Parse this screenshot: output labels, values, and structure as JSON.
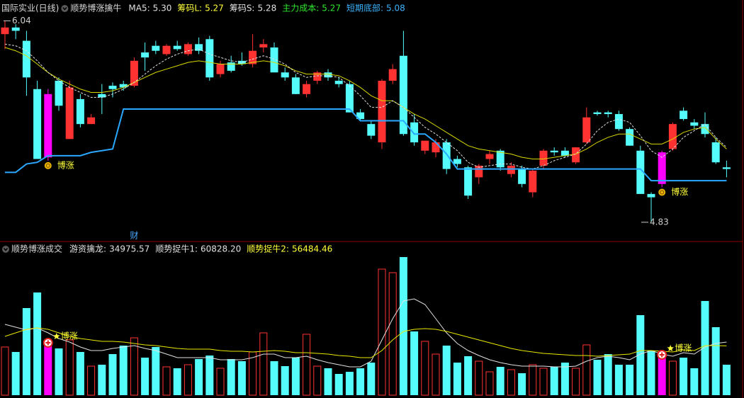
{
  "chart_data": [
    {
      "type": "candlestick",
      "title": "国际实业(日线)",
      "subtitle": "顺势博涨擒牛",
      "indicators": [
        {
          "name": "MA5:",
          "value": 5.3,
          "label": "5.30",
          "color": "#e0e0e0"
        },
        {
          "name": "筹码L:",
          "value": 5.27,
          "color": "#ffff3a"
        },
        {
          "name": "筹码S:",
          "value": 5.28,
          "color": "#e0e0e0"
        },
        {
          "name": "主力成本:",
          "value": 5.27,
          "color": "#2fe82f"
        },
        {
          "name": "短期底部:",
          "value": 5.08,
          "color": "#3cb4ff"
        }
      ],
      "open": [
        5.96,
        6.0,
        5.92,
        5.63,
        5.22,
        5.68,
        5.33,
        5.57,
        5.42,
        5.6,
        5.65,
        5.66,
        5.65,
        5.85,
        5.89,
        5.84,
        5.89,
        5.84,
        5.9,
        5.93,
        5.72,
        5.79,
        5.8,
        5.78,
        5.88,
        5.88,
        5.73,
        5.7,
        5.6,
        5.68,
        5.73,
        5.68,
        5.66,
        5.49,
        5.42,
        5.31,
        5.68,
        5.83,
        5.43,
        5.26,
        5.25,
        5.31,
        5.21,
        5.16,
        5.1,
        5.21,
        5.26,
        5.12,
        5.15,
        5.01,
        5.17,
        5.26,
        5.26,
        5.19,
        5.31,
        5.49,
        5.49,
        5.48,
        5.39,
        5.26,
        5.0,
        5.06,
        5.27,
        5.5,
        5.43,
        5.42,
        5.31,
        5.16
      ],
      "high": [
        6.04,
        6.02,
        5.98,
        5.68,
        5.63,
        5.7,
        5.68,
        5.6,
        5.48,
        5.66,
        5.67,
        5.68,
        5.82,
        5.91,
        5.92,
        5.9,
        5.92,
        5.91,
        5.94,
        5.95,
        5.8,
        5.83,
        5.85,
        5.96,
        5.93,
        5.91,
        5.76,
        5.72,
        5.68,
        5.74,
        5.75,
        5.7,
        5.68,
        5.51,
        5.44,
        5.69,
        5.78,
        5.98,
        5.48,
        5.32,
        5.33,
        5.33,
        5.23,
        5.17,
        5.18,
        5.26,
        5.27,
        5.19,
        5.17,
        5.15,
        5.27,
        5.28,
        5.28,
        5.28,
        5.52,
        5.5,
        5.5,
        5.5,
        5.4,
        5.29,
        5.01,
        5.26,
        5.43,
        5.52,
        5.45,
        5.49,
        5.34,
        5.2
      ],
      "low": [
        5.87,
        5.93,
        5.59,
        5.21,
        5.2,
        5.5,
        5.33,
        5.4,
        5.42,
        5.48,
        5.58,
        5.62,
        5.64,
        5.74,
        5.84,
        5.83,
        5.86,
        5.83,
        5.84,
        5.68,
        5.7,
        5.73,
        5.77,
        5.76,
        5.85,
        5.73,
        5.68,
        5.6,
        5.58,
        5.66,
        5.68,
        5.64,
        5.49,
        5.44,
        5.33,
        5.27,
        5.66,
        5.35,
        5.29,
        5.24,
        5.22,
        5.12,
        5.16,
        4.97,
        5.06,
        5.18,
        5.14,
        5.1,
        5.04,
        4.98,
        5.15,
        5.23,
        5.22,
        5.18,
        5.3,
        5.47,
        5.46,
        5.38,
        5.29,
        5.0,
        4.83,
        5.04,
        5.26,
        5.44,
        5.39,
        5.34,
        5.18,
        5.1
      ],
      "close": [
        6.0,
        5.98,
        5.7,
        5.21,
        5.6,
        5.53,
        5.64,
        5.42,
        5.46,
        5.58,
        5.63,
        5.64,
        5.8,
        5.82,
        5.86,
        5.89,
        5.87,
        5.9,
        5.86,
        5.7,
        5.78,
        5.74,
        5.78,
        5.86,
        5.9,
        5.73,
        5.7,
        5.6,
        5.66,
        5.73,
        5.7,
        5.66,
        5.49,
        5.45,
        5.35,
        5.68,
        5.75,
        5.36,
        5.31,
        5.32,
        5.31,
        5.15,
        5.18,
        4.99,
        5.17,
        5.24,
        5.16,
        5.17,
        5.06,
        5.14,
        5.26,
        5.25,
        5.23,
        5.28,
        5.46,
        5.48,
        5.48,
        5.39,
        5.29,
        5.0,
        4.98,
        5.25,
        5.42,
        5.45,
        5.41,
        5.36,
        5.19,
        5.15
      ],
      "series": [
        {
          "color": "#d8d800",
          "values": [
            5.88,
            5.86,
            5.83,
            5.78,
            5.73,
            5.69,
            5.66,
            5.63,
            5.61,
            5.61,
            5.62,
            5.64,
            5.67,
            5.7,
            5.73,
            5.75,
            5.77,
            5.79,
            5.8,
            5.79,
            5.78,
            5.78,
            5.78,
            5.79,
            5.8,
            5.79,
            5.77,
            5.74,
            5.72,
            5.72,
            5.72,
            5.71,
            5.68,
            5.64,
            5.59,
            5.56,
            5.56,
            5.52,
            5.48,
            5.45,
            5.41,
            5.37,
            5.33,
            5.29,
            5.27,
            5.26,
            5.25,
            5.24,
            5.22,
            5.21,
            5.21,
            5.22,
            5.23,
            5.24,
            5.27,
            5.31,
            5.34,
            5.36,
            5.36,
            5.33,
            5.3,
            5.3,
            5.33,
            5.37,
            5.39,
            5.4,
            5.33,
            5.27
          ]
        },
        {
          "color": "#e0e0e0",
          "dash": true,
          "values": [
            5.9,
            5.89,
            5.86,
            5.8,
            5.73,
            5.68,
            5.64,
            5.61,
            5.58,
            5.58,
            5.6,
            5.63,
            5.67,
            5.72,
            5.77,
            5.81,
            5.84,
            5.86,
            5.87,
            5.84,
            5.82,
            5.8,
            5.79,
            5.81,
            5.83,
            5.81,
            5.78,
            5.73,
            5.7,
            5.71,
            5.71,
            5.7,
            5.65,
            5.59,
            5.52,
            5.52,
            5.56,
            5.52,
            5.46,
            5.4,
            5.36,
            5.31,
            5.26,
            5.19,
            5.16,
            5.17,
            5.18,
            5.18,
            5.16,
            5.15,
            5.17,
            5.2,
            5.22,
            5.24,
            5.3,
            5.38,
            5.43,
            5.45,
            5.43,
            5.35,
            5.26,
            5.22,
            5.27,
            5.34,
            5.38,
            5.42,
            5.34,
            5.28
          ]
        },
        {
          "color": "#2aa8ff",
          "values": [
            5.13,
            5.13,
            5.18,
            5.19,
            5.23,
            5.23,
            5.23,
            5.23,
            5.25,
            5.26,
            5.27,
            5.51,
            5.51,
            5.51,
            5.51,
            5.51,
            5.51,
            5.51,
            5.51,
            5.51,
            5.51,
            5.51,
            5.51,
            5.51,
            5.51,
            5.51,
            5.51,
            5.51,
            5.51,
            5.51,
            5.51,
            5.51,
            5.51,
            5.44,
            5.44,
            5.44,
            5.44,
            5.44,
            5.36,
            5.36,
            5.31,
            5.24,
            5.15,
            5.15,
            5.15,
            5.15,
            5.15,
            5.15,
            5.15,
            5.15,
            5.15,
            5.15,
            5.15,
            5.15,
            5.15,
            5.15,
            5.15,
            5.15,
            5.15,
            5.15,
            5.08,
            5.08,
            5.08,
            5.08,
            5.08,
            5.08,
            5.08,
            5.08
          ]
        }
      ],
      "ylim": [
        4.74,
        6.08
      ],
      "up_color": "#ff3232",
      "down_color": "#54fcfc",
      "signal_color": "#ff00ff",
      "signals": [
        4,
        61
      ],
      "signal_label": "博涨",
      "max_label": 6.04,
      "min_label": 4.83,
      "events": [
        {
          "index": 12,
          "text": "财"
        }
      ]
    },
    {
      "type": "bar",
      "title": "顺势博涨成交",
      "indicators": [
        {
          "name": "游资擒龙:",
          "value": 34975.57,
          "color": "#e0e0e0"
        },
        {
          "name": "顺势捉牛1:",
          "value": 60828.2,
          "label": "60828.20",
          "color": "#e0e0e0"
        },
        {
          "name": "顺势捉牛2:",
          "value": 56484.46,
          "color": "#ffff3a"
        }
      ],
      "values": [
        55150,
        49470,
        99750,
        117600,
        56770,
        53530,
        63260,
        49470,
        33250,
        34870,
        47040,
        56770,
        65690,
        42980,
        55150,
        32440,
        30820,
        34870,
        41360,
        45420,
        30820,
        41360,
        38930,
        49470,
        71370,
        38930,
        33250,
        42980,
        69750,
        33250,
        30820,
        24330,
        26760,
        30820,
        37310,
        144360,
        140300,
        158150,
        72990,
        61640,
        47040,
        56770,
        37310,
        44610,
        38930,
        26760,
        32440,
        29200,
        25140,
        34870,
        30820,
        32440,
        37310,
        30820,
        57580,
        40550,
        47040,
        34870,
        34870,
        91640,
        51090,
        42980,
        38930,
        42980,
        30820,
        107860,
        77860,
        34870
      ],
      "series": [
        {
          "color": "#e0e0e0",
          "values": [
            81100,
            77860,
            74610,
            77050,
            71370,
            64880,
            60830,
            55150,
            51090,
            51090,
            53530,
            55150,
            56770,
            53530,
            51090,
            47040,
            42980,
            42980,
            42980,
            42980,
            40550,
            40550,
            40550,
            42980,
            47040,
            47040,
            42980,
            42980,
            44610,
            40550,
            37310,
            34870,
            32440,
            32440,
            38930,
            63260,
            87590,
            107860,
            110300,
            103810,
            87590,
            71370,
            59200,
            51090,
            45420,
            40550,
            37310,
            34870,
            33250,
            33250,
            33250,
            32440,
            32440,
            33250,
            38930,
            42980,
            44610,
            42980,
            40550,
            47040,
            51090,
            47040,
            44610,
            48660,
            47040,
            55150,
            59200,
            60828.2
          ]
        },
        {
          "color": "#e8e800",
          "values": [
            67310,
            71370,
            75420,
            77050,
            75420,
            71370,
            67310,
            64880,
            63260,
            61640,
            61640,
            60830,
            59200,
            57580,
            56770,
            55150,
            53530,
            52720,
            52720,
            52720,
            51090,
            50280,
            50280,
            49470,
            50280,
            51090,
            50280,
            48660,
            48660,
            47850,
            47040,
            45420,
            44610,
            42980,
            42980,
            51090,
            63260,
            72990,
            75420,
            76230,
            75420,
            72990,
            69750,
            66500,
            63260,
            60010,
            56770,
            53530,
            51090,
            49470,
            47850,
            47040,
            46230,
            45420,
            45420,
            44610,
            45420,
            46230,
            47040,
            51090,
            51090,
            50280,
            49470,
            51900,
            51090,
            56770,
            56770,
            56484.46
          ]
        }
      ],
      "ylim": [
        0,
        162200
      ]
    }
  ]
}
